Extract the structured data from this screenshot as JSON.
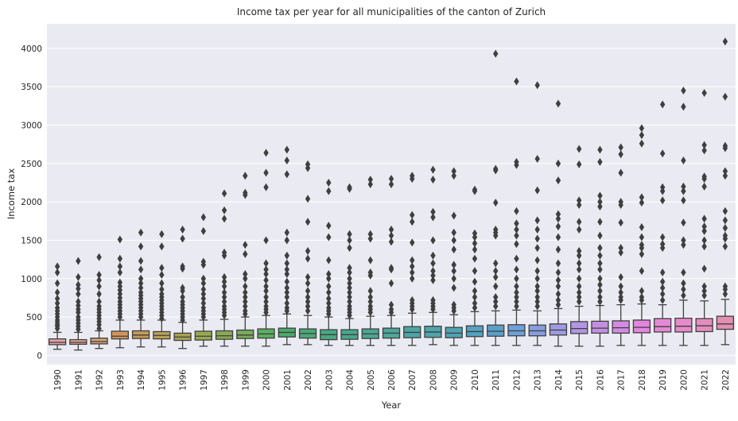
{
  "chart_data": {
    "type": "boxplot",
    "title": "Income tax per year for all municipalities of the canton of Zurich",
    "xlabel": "Year",
    "ylabel": "Income tax",
    "ylim": [
      -120,
      4320
    ],
    "yticks": [
      0,
      500,
      1000,
      1500,
      2000,
      2500,
      3000,
      3500,
      4000
    ],
    "grid": true,
    "background": "#eaeaf2",
    "categories": [
      "1990",
      "1991",
      "1992",
      "1993",
      "1994",
      "1995",
      "1996",
      "1997",
      "1998",
      "1999",
      "2000",
      "2001",
      "2002",
      "2003",
      "2004",
      "2005",
      "2006",
      "2007",
      "2008",
      "2009",
      "2010",
      "2011",
      "2012",
      "2013",
      "2014",
      "2015",
      "2016",
      "2017",
      "2018",
      "2019",
      "2020",
      "2021",
      "2022"
    ],
    "colors": [
      "#e1a2a4",
      "#e1a592",
      "#d3a178",
      "#d3955a",
      "#c49a56",
      "#b9a055",
      "#a8a352",
      "#99a951",
      "#8aab52",
      "#77ac58",
      "#5bad5f",
      "#4aab6b",
      "#4aa877",
      "#48a882",
      "#49a78b",
      "#4aa793",
      "#4ca69b",
      "#4da5a4",
      "#4fa4ac",
      "#51a3b5",
      "#54a2bf",
      "#5aa0ca",
      "#6ca0d8",
      "#879ede",
      "#9f9ae1",
      "#b395e2",
      "#c48fe2",
      "#d38be2",
      "#e385dd",
      "#e389d4",
      "#e68bc9",
      "#e38dbd",
      "#e38fb1"
    ],
    "boxes": [
      {
        "q1": 140,
        "med": 170,
        "q3": 215,
        "wlo": 80,
        "whi": 300,
        "outliers": [
          350,
          380,
          400,
          430,
          460,
          500,
          540,
          580,
          620,
          680,
          740,
          820,
          940,
          1080,
          1160
        ]
      },
      {
        "q1": 145,
        "med": 170,
        "q3": 205,
        "wlo": 70,
        "whi": 300,
        "outliers": [
          340,
          380,
          420,
          460,
          500,
          560,
          600,
          650,
          700,
          800,
          870,
          920,
          1020,
          1230
        ]
      },
      {
        "q1": 150,
        "med": 180,
        "q3": 225,
        "wlo": 90,
        "whi": 320,
        "outliers": [
          350,
          400,
          440,
          480,
          520,
          560,
          600,
          640,
          700,
          800,
          900,
          980,
          1050,
          1280
        ]
      },
      {
        "q1": 215,
        "med": 250,
        "q3": 315,
        "wlo": 100,
        "whi": 460,
        "outliers": [
          500,
          540,
          580,
          620,
          660,
          700,
          750,
          800,
          850,
          900,
          950,
          1080,
          1160,
          1260,
          1510
        ]
      },
      {
        "q1": 220,
        "med": 265,
        "q3": 320,
        "wlo": 110,
        "whi": 460,
        "outliers": [
          500,
          540,
          580,
          620,
          660,
          700,
          740,
          780,
          820,
          880,
          940,
          1000,
          1120,
          1230,
          1420,
          1600
        ]
      },
      {
        "q1": 215,
        "med": 260,
        "q3": 310,
        "wlo": 110,
        "whi": 460,
        "outliers": [
          480,
          520,
          560,
          600,
          640,
          680,
          720,
          760,
          800,
          860,
          940,
          1050,
          1140,
          1420,
          1580
        ]
      },
      {
        "q1": 195,
        "med": 240,
        "q3": 290,
        "wlo": 90,
        "whi": 430,
        "outliers": [
          460,
          500,
          540,
          580,
          620,
          660,
          700,
          760,
          840,
          880,
          1130,
          1160,
          1520,
          1640
        ]
      },
      {
        "q1": 200,
        "med": 250,
        "q3": 315,
        "wlo": 120,
        "whi": 460,
        "outliers": [
          500,
          540,
          580,
          620,
          680,
          740,
          800,
          860,
          940,
          1000,
          1180,
          1220,
          1620,
          1800
        ]
      },
      {
        "q1": 210,
        "med": 255,
        "q3": 320,
        "wlo": 120,
        "whi": 470,
        "outliers": [
          520,
          560,
          600,
          640,
          700,
          760,
          820,
          900,
          960,
          1020,
          1300,
          1340,
          1780,
          1890,
          2110
        ]
      },
      {
        "q1": 220,
        "med": 265,
        "q3": 330,
        "wlo": 120,
        "whi": 500,
        "outliers": [
          540,
          580,
          640,
          700,
          760,
          820,
          900,
          1000,
          1060,
          1320,
          1440,
          2090,
          2120,
          2340
        ]
      },
      {
        "q1": 225,
        "med": 280,
        "q3": 345,
        "wlo": 120,
        "whi": 520,
        "outliers": [
          560,
          600,
          640,
          700,
          760,
          840,
          900,
          980,
          1060,
          1120,
          1200,
          1500,
          2190,
          2380,
          2640
        ]
      },
      {
        "q1": 240,
        "med": 300,
        "q3": 355,
        "wlo": 140,
        "whi": 540,
        "outliers": [
          580,
          620,
          680,
          760,
          820,
          880,
          960,
          1060,
          1120,
          1200,
          1300,
          1500,
          1600,
          2360,
          2540,
          2680
        ]
      },
      {
        "q1": 225,
        "med": 285,
        "q3": 345,
        "wlo": 140,
        "whi": 520,
        "outliers": [
          580,
          640,
          700,
          760,
          840,
          940,
          1020,
          1260,
          1360,
          1740,
          2040,
          2440,
          2490
        ]
      },
      {
        "q1": 205,
        "med": 270,
        "q3": 335,
        "wlo": 130,
        "whi": 500,
        "outliers": [
          540,
          580,
          620,
          680,
          740,
          820,
          900,
          1000,
          1060,
          1240,
          1540,
          1690,
          2140,
          2250
        ]
      },
      {
        "q1": 210,
        "med": 270,
        "q3": 335,
        "wlo": 130,
        "whi": 480,
        "outliers": [
          520,
          560,
          600,
          640,
          700,
          760,
          820,
          880,
          940,
          1000,
          1080,
          1140,
          1400,
          1500,
          1580,
          2170,
          2190
        ]
      },
      {
        "q1": 220,
        "med": 280,
        "q3": 345,
        "wlo": 130,
        "whi": 510,
        "outliers": [
          560,
          600,
          640,
          700,
          760,
          840,
          1040,
          1080,
          1240,
          1520,
          1580,
          2230,
          2290
        ]
      },
      {
        "q1": 225,
        "med": 290,
        "q3": 355,
        "wlo": 130,
        "whi": 520,
        "outliers": [
          560,
          600,
          660,
          940,
          1120,
          1140,
          1480,
          1560,
          1640,
          2230,
          2300
        ]
      },
      {
        "q1": 230,
        "med": 300,
        "q3": 375,
        "wlo": 130,
        "whi": 550,
        "outliers": [
          600,
          640,
          680,
          720,
          1000,
          1080,
          1160,
          1240,
          1470,
          1740,
          1830,
          2300,
          2340
        ]
      },
      {
        "q1": 235,
        "med": 305,
        "q3": 380,
        "wlo": 140,
        "whi": 560,
        "outliers": [
          600,
          640,
          680,
          720,
          980,
          1040,
          1100,
          1200,
          1300,
          1500,
          1800,
          1870,
          2290,
          2420
        ]
      },
      {
        "q1": 230,
        "med": 290,
        "q3": 365,
        "wlo": 130,
        "whi": 530,
        "outliers": [
          580,
          620,
          660,
          880,
          1000,
          1100,
          1180,
          1380,
          1500,
          1600,
          1820,
          2340,
          2400
        ]
      },
      {
        "q1": 245,
        "med": 310,
        "q3": 385,
        "wlo": 130,
        "whi": 570,
        "outliers": [
          620,
          680,
          760,
          840,
          960,
          1100,
          1260,
          1380,
          1460,
          1540,
          1590,
          2140,
          2160
        ]
      },
      {
        "q1": 250,
        "med": 315,
        "q3": 395,
        "wlo": 130,
        "whi": 580,
        "outliers": [
          640,
          700,
          760,
          900,
          1020,
          1100,
          1200,
          1560,
          1600,
          1640,
          1990,
          2410,
          2430,
          3930
        ]
      },
      {
        "q1": 255,
        "med": 320,
        "q3": 400,
        "wlo": 130,
        "whi": 590,
        "outliers": [
          640,
          700,
          760,
          820,
          900,
          1000,
          1120,
          1260,
          1450,
          1560,
          1640,
          1720,
          1880,
          2480,
          2520,
          3570
        ]
      },
      {
        "q1": 255,
        "med": 320,
        "q3": 395,
        "wlo": 130,
        "whi": 580,
        "outliers": [
          640,
          700,
          760,
          840,
          900,
          1000,
          1100,
          1240,
          1400,
          1520,
          1640,
          1760,
          2150,
          2560,
          3520
        ]
      },
      {
        "q1": 265,
        "med": 330,
        "q3": 410,
        "wlo": 120,
        "whi": 610,
        "outliers": [
          660,
          720,
          800,
          900,
          980,
          1080,
          1200,
          1380,
          1540,
          1680,
          1780,
          1840,
          2280,
          2500,
          3280
        ]
      },
      {
        "q1": 285,
        "med": 350,
        "q3": 440,
        "wlo": 120,
        "whi": 640,
        "outliers": [
          700,
          760,
          820,
          900,
          1000,
          1120,
          1200,
          1300,
          1360,
          1640,
          1740,
          1960,
          2020,
          2490,
          2690
        ]
      },
      {
        "q1": 290,
        "med": 355,
        "q3": 445,
        "wlo": 120,
        "whi": 650,
        "outliers": [
          700,
          760,
          840,
          920,
          1000,
          1120,
          1200,
          1300,
          1400,
          1560,
          1740,
          1940,
          2000,
          2080,
          2520,
          2680
        ]
      },
      {
        "q1": 290,
        "med": 360,
        "q3": 450,
        "wlo": 130,
        "whi": 660,
        "outliers": [
          720,
          760,
          820,
          900,
          1020,
          1340,
          1400,
          1730,
          1960,
          2000,
          2380,
          2620,
          2710
        ]
      },
      {
        "q1": 295,
        "med": 365,
        "q3": 460,
        "wlo": 130,
        "whi": 670,
        "outliers": [
          720,
          760,
          840,
          1100,
          1320,
          1400,
          1440,
          1540,
          1670,
          1990,
          2060,
          2760,
          2870,
          2960
        ]
      },
      {
        "q1": 305,
        "med": 375,
        "q3": 480,
        "wlo": 130,
        "whi": 660,
        "outliers": [
          720,
          800,
          880,
          960,
          1080,
          1400,
          1450,
          1540,
          2020,
          2140,
          2190,
          2630,
          3270
        ]
      },
      {
        "q1": 305,
        "med": 380,
        "q3": 485,
        "wlo": 130,
        "whi": 720,
        "outliers": [
          780,
          860,
          940,
          1080,
          1440,
          1500,
          1730,
          2020,
          2140,
          2200,
          2540,
          3240,
          3450
        ]
      },
      {
        "q1": 310,
        "med": 385,
        "q3": 480,
        "wlo": 130,
        "whi": 710,
        "outliers": [
          780,
          840,
          900,
          1130,
          1420,
          1500,
          1620,
          1680,
          1780,
          2200,
          2300,
          2330,
          2670,
          2740,
          3420
        ]
      },
      {
        "q1": 340,
        "med": 410,
        "q3": 510,
        "wlo": 140,
        "whi": 730,
        "outliers": [
          800,
          860,
          900,
          1420,
          1520,
          1560,
          1660,
          1760,
          1880,
          2340,
          2400,
          2700,
          2730,
          3370,
          4090
        ]
      }
    ]
  }
}
